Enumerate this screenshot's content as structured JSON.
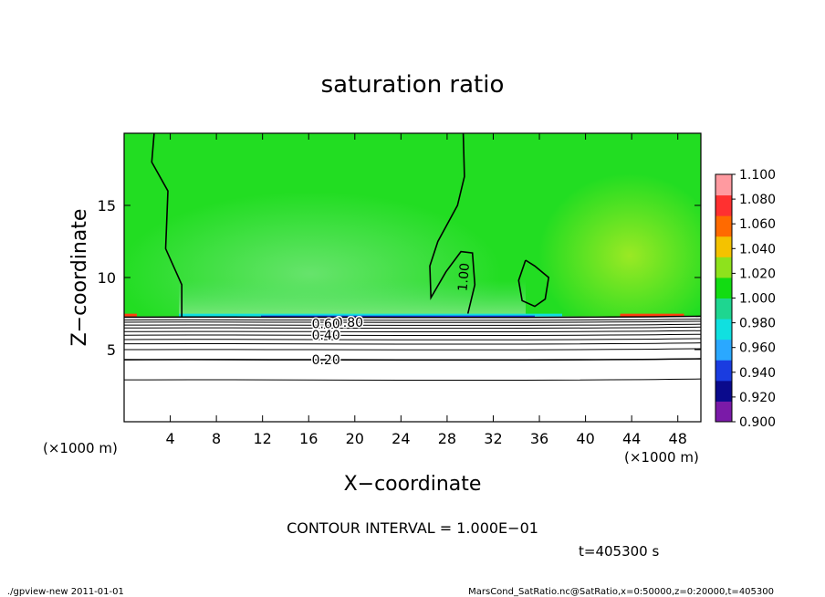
{
  "chart_data": {
    "type": "heatmap",
    "title": "saturation ratio",
    "xlabel": "X−coordinate",
    "ylabel": "Z−coordinate",
    "x_unit_left": "(×1000 m)",
    "x_unit_right": "(×1000 m)",
    "xlim": [
      0,
      50
    ],
    "ylim": [
      0,
      20
    ],
    "x_ticks": [
      4,
      8,
      12,
      16,
      20,
      24,
      28,
      32,
      36,
      40,
      44,
      48
    ],
    "y_ticks": [
      5,
      10,
      15
    ],
    "colorbar": {
      "levels": [
        "0.900",
        "0.920",
        "0.940",
        "0.960",
        "0.980",
        "1.000",
        "1.020",
        "1.040",
        "1.060",
        "1.080",
        "1.100"
      ],
      "colors": [
        "#7a1aa8",
        "#0a0a8c",
        "#1a3ce0",
        "#2aa8ff",
        "#10e0e0",
        "#1ed690",
        "#12dc12",
        "#8ee21c",
        "#f4c200",
        "#ff6a00",
        "#ff3030",
        "#ff9aa0"
      ]
    },
    "field_colors": {
      "upper_main": "#22dd22",
      "upper_light": "#4ee04a",
      "near_boundary": "#7ee880",
      "boundary_cyan": "#10e0e0",
      "boundary_blue": "#1a3ce0",
      "hot_spot": "#ff4010",
      "lower": "#ffffff"
    },
    "boundary_z": 7.3,
    "contour_labels": [
      {
        "text": "1.00",
        "x": 29.8,
        "z": 10.0
      },
      {
        "text": "0.80",
        "x": 19.5,
        "z": 6.9
      },
      {
        "text": "0.60",
        "x": 17.5,
        "z": 6.8
      },
      {
        "text": "0.40",
        "x": 17.5,
        "z": 6.0
      },
      {
        "text": "0.20",
        "x": 17.5,
        "z": 4.3
      }
    ],
    "contour_interval_text": "CONTOUR INTERVAL = 1.000E−01",
    "time_text": "t=405300 s"
  },
  "footer": {
    "left": "./gpview-new  2011-01-01",
    "right": "MarsCond_SatRatio.nc@SatRatio,x=0:50000,z=0:20000,t=405300"
  }
}
